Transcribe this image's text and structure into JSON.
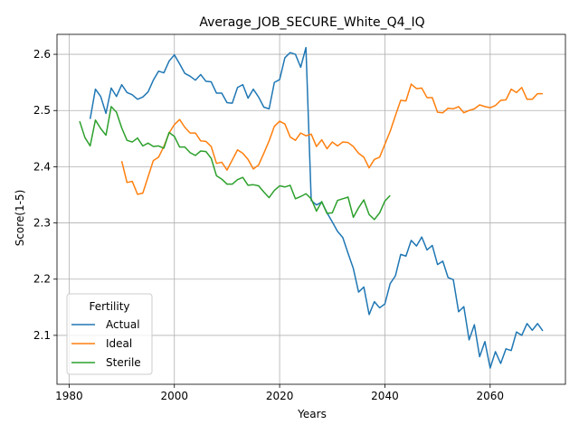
{
  "chart_data": {
    "type": "line",
    "title": "Average_JOB_SECURE_White_Q4_IQ",
    "xlabel": "Years",
    "ylabel": "Score(1-5)",
    "xlim": [
      1977.7,
      2074.3
    ],
    "ylim": [
      2.013,
      2.6355
    ],
    "xticks": [
      1980,
      2000,
      2020,
      2040,
      2060
    ],
    "yticks": [
      2.1,
      2.2,
      2.3,
      2.4,
      2.5,
      2.6
    ],
    "grid": true,
    "legend": {
      "title": "Fertility",
      "position": "lower-left"
    },
    "series": [
      {
        "name": "Actual",
        "color": "#1f77b4",
        "x": [
          1984,
          1985,
          1986,
          1987,
          1988,
          1989,
          1990,
          1991,
          1992,
          1993,
          1994,
          1995,
          1996,
          1997,
          1998,
          1999,
          2000,
          2001,
          2002,
          2003,
          2004,
          2005,
          2006,
          2007,
          2008,
          2009,
          2010,
          2011,
          2012,
          2013,
          2014,
          2015,
          2016,
          2017,
          2018,
          2019,
          2020,
          2021,
          2022,
          2023,
          2024,
          2025,
          2026,
          2027,
          2028,
          2029,
          2030,
          2031,
          2032,
          2033,
          2034,
          2035,
          2036,
          2037,
          2038,
          2039,
          2040,
          2041,
          2042,
          2043,
          2044,
          2045,
          2046,
          2047,
          2048,
          2049,
          2050,
          2051,
          2052,
          2053,
          2054,
          2055,
          2056,
          2057,
          2058,
          2059,
          2060,
          2061,
          2062,
          2063,
          2064,
          2065,
          2066,
          2067,
          2068,
          2069,
          2070
        ],
        "y": [
          2.485,
          2.538,
          2.525,
          2.495,
          2.54,
          2.525,
          2.546,
          2.532,
          2.528,
          2.52,
          2.524,
          2.533,
          2.554,
          2.57,
          2.567,
          2.588,
          2.599,
          2.583,
          2.566,
          2.561,
          2.554,
          2.564,
          2.552,
          2.551,
          2.531,
          2.531,
          2.514,
          2.513,
          2.541,
          2.546,
          2.522,
          2.538,
          2.524,
          2.506,
          2.503,
          2.55,
          2.555,
          2.594,
          2.603,
          2.6,
          2.577,
          2.612,
          2.34,
          2.332,
          2.337,
          2.318,
          2.302,
          2.285,
          2.274,
          2.246,
          2.219,
          2.177,
          2.186,
          2.137,
          2.16,
          2.149,
          2.156,
          2.192,
          2.206,
          2.244,
          2.241,
          2.269,
          2.259,
          2.275,
          2.252,
          2.26,
          2.226,
          2.232,
          2.203,
          2.199,
          2.142,
          2.151,
          2.092,
          2.119,
          2.062,
          2.089,
          2.042,
          2.071,
          2.05,
          2.076,
          2.073,
          2.106,
          2.1,
          2.121,
          2.109,
          2.121,
          2.108
        ]
      },
      {
        "name": "Ideal",
        "color": "#ff7f0e",
        "x": [
          1990,
          1991,
          1992,
          1993,
          1994,
          1995,
          1996,
          1997,
          1998,
          1999,
          2000,
          2001,
          2002,
          2003,
          2004,
          2005,
          2006,
          2007,
          2008,
          2009,
          2010,
          2011,
          2012,
          2013,
          2014,
          2015,
          2016,
          2017,
          2018,
          2019,
          2020,
          2021,
          2022,
          2023,
          2024,
          2025,
          2026,
          2027,
          2028,
          2029,
          2030,
          2031,
          2032,
          2033,
          2034,
          2035,
          2036,
          2037,
          2038,
          2039,
          2040,
          2041,
          2042,
          2043,
          2044,
          2045,
          2046,
          2047,
          2048,
          2049,
          2050,
          2051,
          2052,
          2053,
          2054,
          2055,
          2056,
          2057,
          2058,
          2059,
          2060,
          2061,
          2062,
          2063,
          2064,
          2065,
          2066,
          2067,
          2068,
          2069,
          2070
        ],
        "y": [
          2.41,
          2.372,
          2.374,
          2.351,
          2.353,
          2.382,
          2.411,
          2.417,
          2.436,
          2.46,
          2.475,
          2.484,
          2.47,
          2.46,
          2.46,
          2.446,
          2.445,
          2.436,
          2.406,
          2.408,
          2.394,
          2.412,
          2.43,
          2.424,
          2.413,
          2.396,
          2.403,
          2.424,
          2.446,
          2.472,
          2.481,
          2.476,
          2.453,
          2.447,
          2.46,
          2.455,
          2.458,
          2.436,
          2.448,
          2.432,
          2.444,
          2.437,
          2.444,
          2.443,
          2.436,
          2.424,
          2.417,
          2.398,
          2.413,
          2.417,
          2.44,
          2.463,
          2.491,
          2.518,
          2.517,
          2.547,
          2.539,
          2.54,
          2.523,
          2.523,
          2.497,
          2.496,
          2.504,
          2.503,
          2.507,
          2.496,
          2.5,
          2.503,
          2.51,
          2.507,
          2.505,
          2.509,
          2.518,
          2.519,
          2.538,
          2.532,
          2.541,
          2.52,
          2.52,
          2.53,
          2.53
        ]
      },
      {
        "name": "Sterile",
        "color": "#2ca02c",
        "x": [
          1982,
          1983,
          1984,
          1985,
          1986,
          1987,
          1988,
          1989,
          1990,
          1991,
          1992,
          1993,
          1994,
          1995,
          1996,
          1997,
          1998,
          1999,
          2000,
          2001,
          2002,
          2003,
          2004,
          2005,
          2006,
          2007,
          2008,
          2009,
          2010,
          2011,
          2012,
          2013,
          2014,
          2015,
          2016,
          2017,
          2018,
          2019,
          2020,
          2021,
          2022,
          2023,
          2024,
          2025,
          2026,
          2027,
          2028,
          2029,
          2030,
          2031,
          2032,
          2033,
          2034,
          2035,
          2036,
          2037,
          2038,
          2039,
          2040,
          2041
        ],
        "y": [
          2.481,
          2.452,
          2.437,
          2.483,
          2.468,
          2.456,
          2.507,
          2.497,
          2.469,
          2.447,
          2.444,
          2.451,
          2.437,
          2.442,
          2.436,
          2.437,
          2.433,
          2.461,
          2.454,
          2.435,
          2.435,
          2.425,
          2.42,
          2.428,
          2.427,
          2.415,
          2.384,
          2.378,
          2.369,
          2.369,
          2.377,
          2.381,
          2.367,
          2.368,
          2.366,
          2.355,
          2.345,
          2.358,
          2.366,
          2.364,
          2.367,
          2.343,
          2.347,
          2.352,
          2.343,
          2.321,
          2.338,
          2.317,
          2.318,
          2.34,
          2.343,
          2.346,
          2.31,
          2.327,
          2.341,
          2.315,
          2.306,
          2.318,
          2.339,
          2.349
        ]
      }
    ]
  }
}
